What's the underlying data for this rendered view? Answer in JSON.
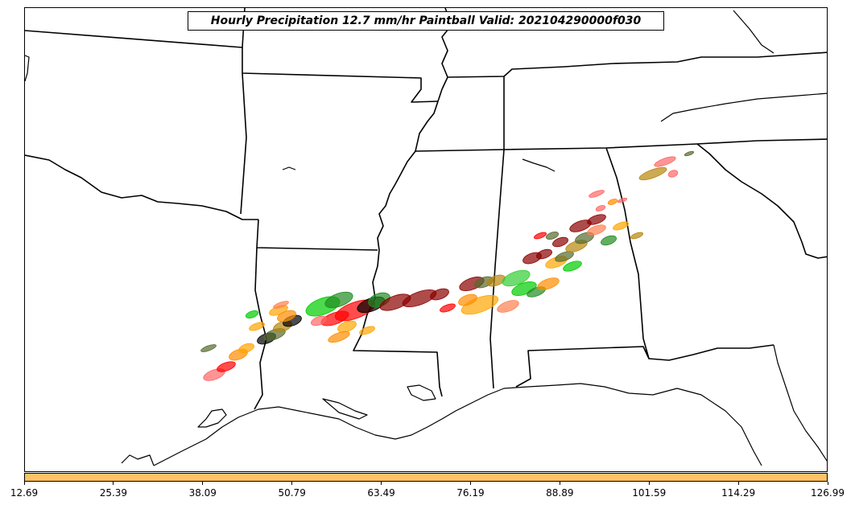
{
  "title": "Hourly Precipitation 12.7 mm/hr Paintball Valid: 202104290000f030",
  "colorbar": {
    "color": "#ffc266",
    "ticks": [
      "12.69",
      "25.39",
      "38.09",
      "50.79",
      "63.49",
      "76.19",
      "88.89",
      "101.59",
      "114.29",
      "126.99"
    ]
  },
  "paintball_colors": [
    "#ff0000",
    "#ff6666",
    "#00cc00",
    "#228b22",
    "#ff8c00",
    "#ffa500",
    "#8b0000",
    "#000000",
    "#556b2f",
    "#b8860b",
    "#32cd32",
    "#ff7f50"
  ]
}
